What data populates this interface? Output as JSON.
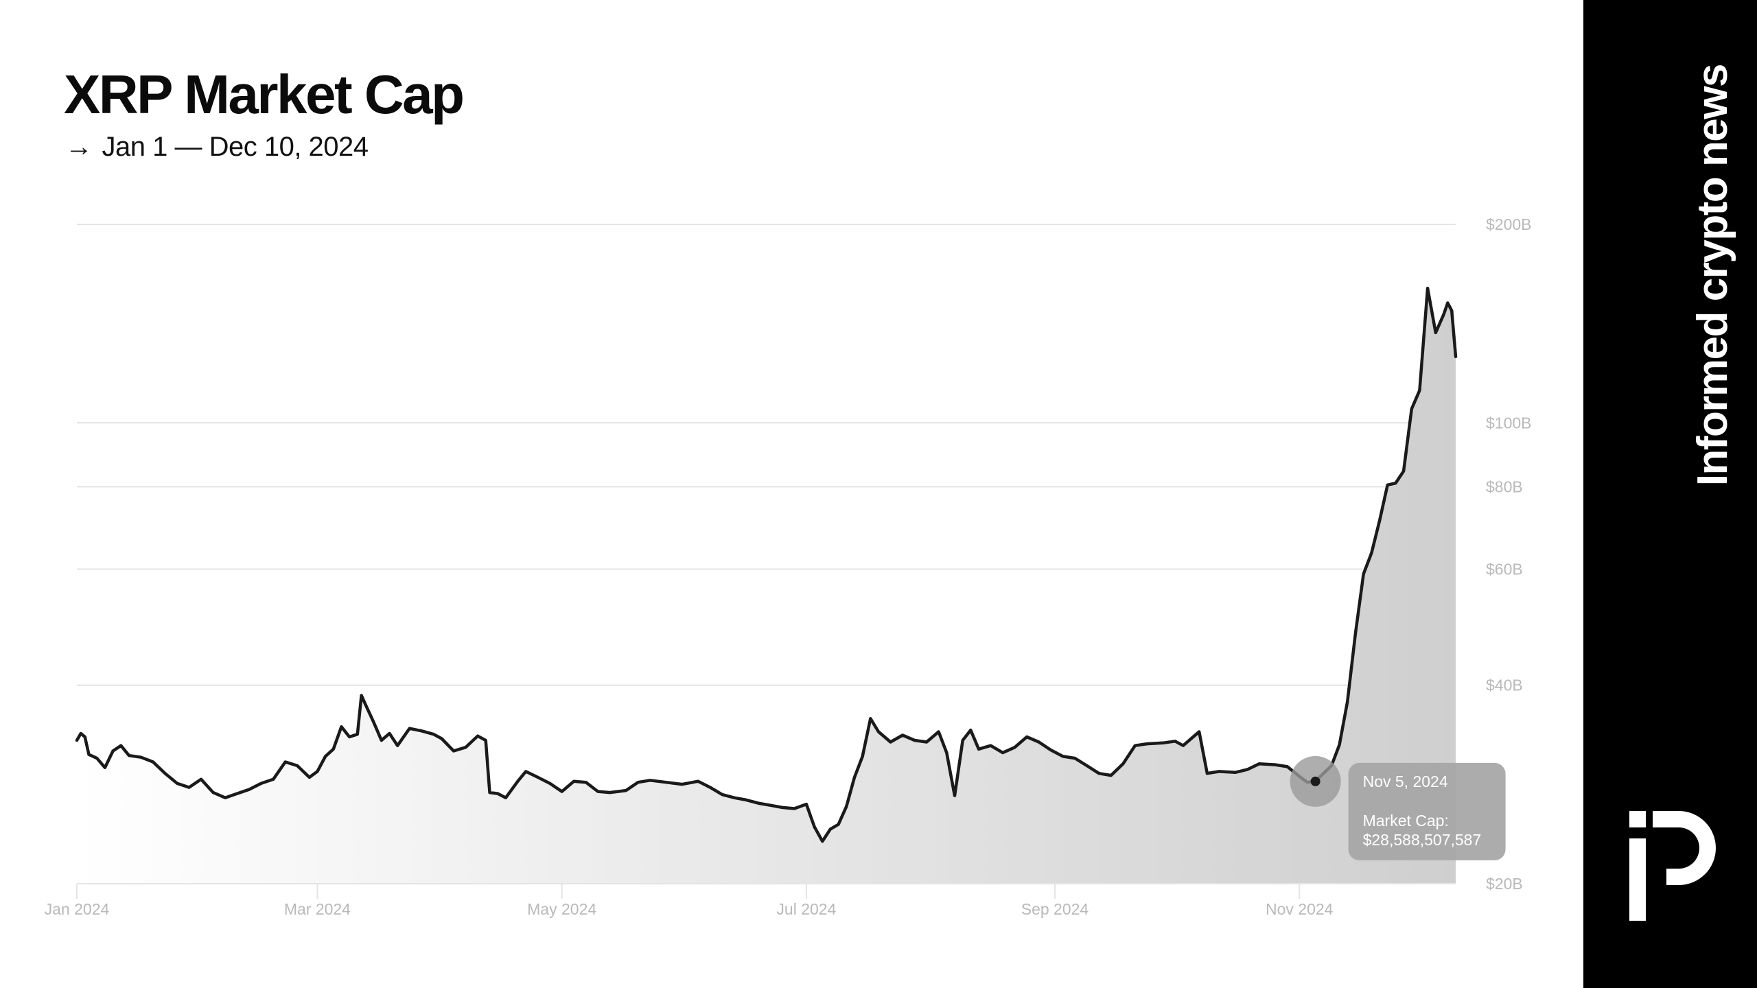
{
  "header": {
    "title": "XRP Market Cap",
    "subtitle_arrow": "→",
    "subtitle": "Jan 1 — Dec 10, 2024"
  },
  "sidebar": {
    "tagline": "Informed crypto news",
    "logo_icon": "brand-logo-icon",
    "background": "#000000"
  },
  "colors": {
    "line": "#1a1a1a",
    "grid": "#e4e4e4",
    "tick_text": "#b9b9b9",
    "tooltip_bg": "#a6a6a6",
    "tooltip_text": "#ffffff"
  },
  "chart_data": {
    "type": "area",
    "y_scale": "log",
    "ylim": [
      20,
      200
    ],
    "xlim": [
      "2024-01-01",
      "2024-12-10"
    ],
    "y_ticks": [
      {
        "value": 200,
        "label": "$200B"
      },
      {
        "value": 100,
        "label": "$100B"
      },
      {
        "value": 80,
        "label": "$80B"
      },
      {
        "value": 60,
        "label": "$60B"
      },
      {
        "value": 40,
        "label": "$40B"
      },
      {
        "value": 20,
        "label": "$20B"
      }
    ],
    "x_ticks": [
      {
        "date": "2024-01-01",
        "label": "Jan 2024"
      },
      {
        "date": "2024-03-01",
        "label": "Mar 2024"
      },
      {
        "date": "2024-05-01",
        "label": "May 2024"
      },
      {
        "date": "2024-07-01",
        "label": "Jul 2024"
      },
      {
        "date": "2024-09-01",
        "label": "Sep 2024"
      },
      {
        "date": "2024-11-01",
        "label": "Nov 2024"
      }
    ],
    "grid": true,
    "series": [
      {
        "values": [
          [
            "2024-01-01",
            33.0
          ],
          [
            "2024-01-02",
            33.8
          ],
          [
            "2024-01-03",
            33.4
          ],
          [
            "2024-01-04",
            31.4
          ],
          [
            "2024-01-06",
            31.0
          ],
          [
            "2024-01-08",
            30.0
          ],
          [
            "2024-01-10",
            31.8
          ],
          [
            "2024-01-12",
            32.4
          ],
          [
            "2024-01-14",
            31.3
          ],
          [
            "2024-01-17",
            31.1
          ],
          [
            "2024-01-20",
            30.6
          ],
          [
            "2024-01-23",
            29.4
          ],
          [
            "2024-01-26",
            28.4
          ],
          [
            "2024-01-29",
            28.0
          ],
          [
            "2024-02-01",
            28.8
          ],
          [
            "2024-02-04",
            27.5
          ],
          [
            "2024-02-07",
            27.0
          ],
          [
            "2024-02-10",
            27.4
          ],
          [
            "2024-02-13",
            27.8
          ],
          [
            "2024-02-16",
            28.4
          ],
          [
            "2024-02-19",
            28.8
          ],
          [
            "2024-02-22",
            30.6
          ],
          [
            "2024-02-25",
            30.2
          ],
          [
            "2024-02-28",
            29.0
          ],
          [
            "2024-03-01",
            29.6
          ],
          [
            "2024-03-03",
            31.2
          ],
          [
            "2024-03-05",
            32.0
          ],
          [
            "2024-03-07",
            34.6
          ],
          [
            "2024-03-09",
            33.4
          ],
          [
            "2024-03-11",
            33.7
          ],
          [
            "2024-03-12",
            38.6
          ],
          [
            "2024-03-13",
            37.4
          ],
          [
            "2024-03-15",
            35.2
          ],
          [
            "2024-03-17",
            33.0
          ],
          [
            "2024-03-19",
            33.8
          ],
          [
            "2024-03-21",
            32.4
          ],
          [
            "2024-03-24",
            34.4
          ],
          [
            "2024-03-27",
            34.1
          ],
          [
            "2024-03-30",
            33.7
          ],
          [
            "2024-04-01",
            33.2
          ],
          [
            "2024-04-04",
            31.8
          ],
          [
            "2024-04-07",
            32.2
          ],
          [
            "2024-04-10",
            33.5
          ],
          [
            "2024-04-12",
            33.0
          ],
          [
            "2024-04-13",
            27.5
          ],
          [
            "2024-04-15",
            27.4
          ],
          [
            "2024-04-17",
            27.0
          ],
          [
            "2024-04-20",
            28.6
          ],
          [
            "2024-04-22",
            29.6
          ],
          [
            "2024-04-25",
            29.0
          ],
          [
            "2024-04-28",
            28.4
          ],
          [
            "2024-05-01",
            27.6
          ],
          [
            "2024-05-04",
            28.6
          ],
          [
            "2024-05-07",
            28.5
          ],
          [
            "2024-05-10",
            27.6
          ],
          [
            "2024-05-13",
            27.5
          ],
          [
            "2024-05-17",
            27.7
          ],
          [
            "2024-05-20",
            28.5
          ],
          [
            "2024-05-23",
            28.7
          ],
          [
            "2024-05-27",
            28.5
          ],
          [
            "2024-05-31",
            28.3
          ],
          [
            "2024-06-04",
            28.6
          ],
          [
            "2024-06-07",
            28.0
          ],
          [
            "2024-06-10",
            27.3
          ],
          [
            "2024-06-13",
            27.0
          ],
          [
            "2024-06-16",
            26.8
          ],
          [
            "2024-06-19",
            26.5
          ],
          [
            "2024-06-22",
            26.3
          ],
          [
            "2024-06-25",
            26.1
          ],
          [
            "2024-06-28",
            26.0
          ],
          [
            "2024-07-01",
            26.4
          ],
          [
            "2024-07-03",
            24.4
          ],
          [
            "2024-07-05",
            23.2
          ],
          [
            "2024-07-07",
            24.2
          ],
          [
            "2024-07-09",
            24.6
          ],
          [
            "2024-07-11",
            26.2
          ],
          [
            "2024-07-13",
            29.0
          ],
          [
            "2024-07-15",
            31.2
          ],
          [
            "2024-07-17",
            35.6
          ],
          [
            "2024-07-19",
            34.0
          ],
          [
            "2024-07-22",
            32.8
          ],
          [
            "2024-07-25",
            33.6
          ],
          [
            "2024-07-28",
            33.0
          ],
          [
            "2024-07-31",
            32.8
          ],
          [
            "2024-08-03",
            34.0
          ],
          [
            "2024-08-05",
            31.6
          ],
          [
            "2024-08-07",
            27.2
          ],
          [
            "2024-08-09",
            33.0
          ],
          [
            "2024-08-11",
            34.2
          ],
          [
            "2024-08-13",
            32.0
          ],
          [
            "2024-08-16",
            32.4
          ],
          [
            "2024-08-19",
            31.6
          ],
          [
            "2024-08-22",
            32.2
          ],
          [
            "2024-08-25",
            33.4
          ],
          [
            "2024-08-28",
            32.8
          ],
          [
            "2024-08-31",
            31.9
          ],
          [
            "2024-09-03",
            31.2
          ],
          [
            "2024-09-06",
            31.0
          ],
          [
            "2024-09-09",
            30.2
          ],
          [
            "2024-09-12",
            29.4
          ],
          [
            "2024-09-15",
            29.2
          ],
          [
            "2024-09-18",
            30.4
          ],
          [
            "2024-09-21",
            32.4
          ],
          [
            "2024-09-24",
            32.6
          ],
          [
            "2024-09-28",
            32.7
          ],
          [
            "2024-10-01",
            32.9
          ],
          [
            "2024-10-03",
            32.4
          ],
          [
            "2024-10-05",
            33.2
          ],
          [
            "2024-10-07",
            34.0
          ],
          [
            "2024-10-09",
            29.4
          ],
          [
            "2024-10-12",
            29.6
          ],
          [
            "2024-10-16",
            29.5
          ],
          [
            "2024-10-19",
            29.8
          ],
          [
            "2024-10-22",
            30.4
          ],
          [
            "2024-10-26",
            30.3
          ],
          [
            "2024-10-29",
            30.1
          ],
          [
            "2024-11-01",
            29.1
          ],
          [
            "2024-11-03",
            28.5
          ],
          [
            "2024-11-05",
            28.6
          ],
          [
            "2024-11-07",
            29.4
          ],
          [
            "2024-11-09",
            30.2
          ],
          [
            "2024-11-11",
            32.5
          ],
          [
            "2024-11-13",
            37.8
          ],
          [
            "2024-11-15",
            48.0
          ],
          [
            "2024-11-17",
            59.0
          ],
          [
            "2024-11-19",
            63.5
          ],
          [
            "2024-11-21",
            71.0
          ],
          [
            "2024-11-23",
            80.5
          ],
          [
            "2024-11-25",
            81.0
          ],
          [
            "2024-11-27",
            84.5
          ],
          [
            "2024-11-29",
            105.0
          ],
          [
            "2024-12-01",
            112.0
          ],
          [
            "2024-12-03",
            160.0
          ],
          [
            "2024-12-05",
            137.0
          ],
          [
            "2024-12-07",
            146.0
          ],
          [
            "2024-12-08",
            152.0
          ],
          [
            "2024-12-09",
            148.0
          ],
          [
            "2024-12-10",
            126.0
          ]
        ]
      }
    ],
    "highlight": {
      "date": "2024-11-05",
      "value": 28.588507587,
      "tooltip_date": "Nov 5, 2024",
      "tooltip_label": "Market Cap:",
      "tooltip_value": "$28,588,507,587"
    }
  }
}
